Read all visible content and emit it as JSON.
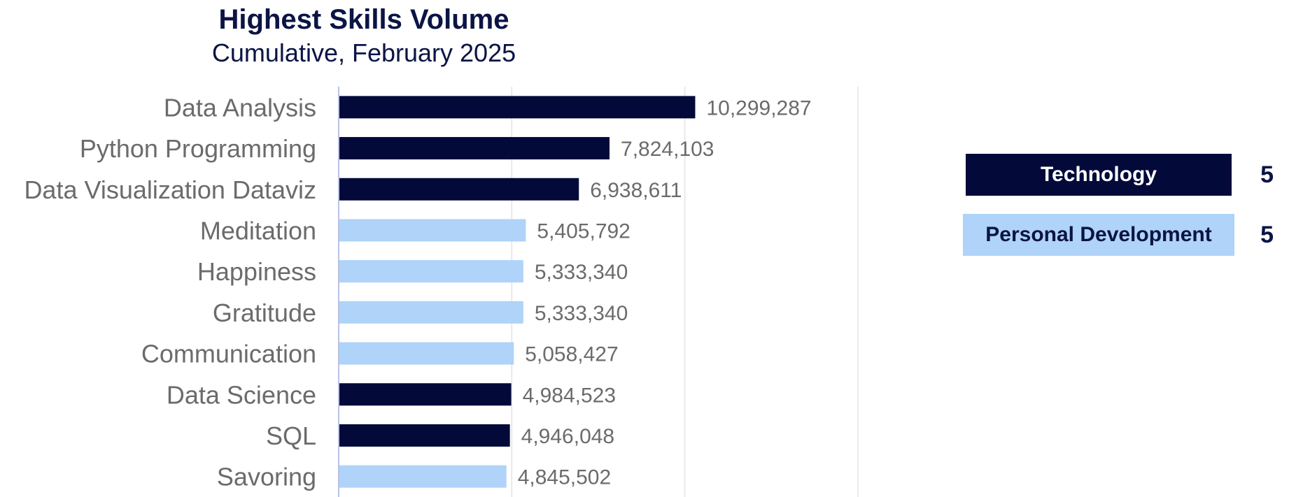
{
  "chart_data": {
    "type": "bar",
    "orientation": "horizontal",
    "title": "Highest Skills Volume",
    "subtitle": "Cumulative, February 2025",
    "categories": [
      "Data Analysis",
      "Python Programming",
      "Data Visualization Dataviz",
      "Meditation",
      "Happiness",
      "Gratitude",
      "Communication",
      "Data Science",
      "SQL",
      "Savoring"
    ],
    "values": [
      10299287,
      7824103,
      6938611,
      5405792,
      5333340,
      5333340,
      5058427,
      4984523,
      4946048,
      4845502
    ],
    "value_labels": [
      "10,299,287",
      "7,824,103",
      "6,938,611",
      "5,405,792",
      "5,333,340",
      "5,333,340",
      "5,058,427",
      "4,984,523",
      "4,946,048",
      "4,845,502"
    ],
    "groups": [
      "Technology",
      "Technology",
      "Technology",
      "Personal Development",
      "Personal Development",
      "Personal Development",
      "Personal Development",
      "Technology",
      "Technology",
      "Personal Development"
    ],
    "xlim": [
      0,
      15000000
    ],
    "gridlines": [
      0,
      5000000,
      10000000,
      15000000
    ],
    "grid": true,
    "legend_position": "right",
    "colors": {
      "Technology": "#030a3a",
      "Personal Development": "#afd3f9"
    }
  },
  "legend": {
    "items": [
      {
        "label": "Technology",
        "count": "5",
        "color": "#030a3a",
        "text_color": "#ffffff"
      },
      {
        "label": "Personal Development",
        "count": "5",
        "color": "#afd3f9",
        "text_color": "#0b1445"
      }
    ]
  }
}
